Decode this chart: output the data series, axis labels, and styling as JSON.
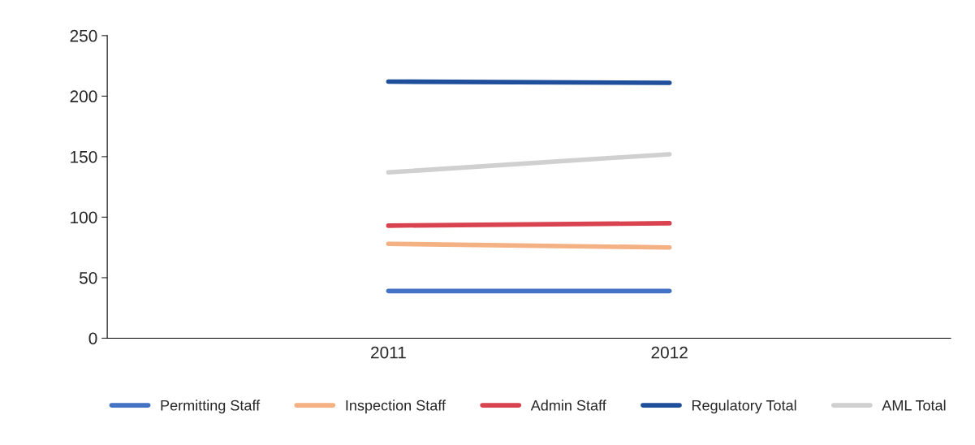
{
  "chart_data": {
    "type": "line",
    "x": [
      2011,
      2012
    ],
    "xlim": [
      2010,
      2013
    ],
    "xticks": [
      2011,
      2012
    ],
    "ylim": [
      0,
      250
    ],
    "yticks": [
      0,
      50,
      100,
      150,
      200,
      250
    ],
    "grid": false,
    "legend": "bottom",
    "marker": "none",
    "line_style": "solid",
    "series": [
      {
        "name": "Permitting Staff",
        "color": "#4472c4",
        "values": [
          39,
          39
        ]
      },
      {
        "name": "Inspection Staff",
        "color": "#f4b183",
        "values": [
          78,
          75
        ]
      },
      {
        "name": "Admin Staff",
        "color": "#d9434f",
        "values": [
          93,
          95
        ]
      },
      {
        "name": "Regulatory Total",
        "color": "#1f4e9a",
        "values": [
          212,
          211
        ]
      },
      {
        "name": "AML Total",
        "color": "#d0d0d0",
        "values": [
          137,
          152
        ]
      }
    ]
  }
}
